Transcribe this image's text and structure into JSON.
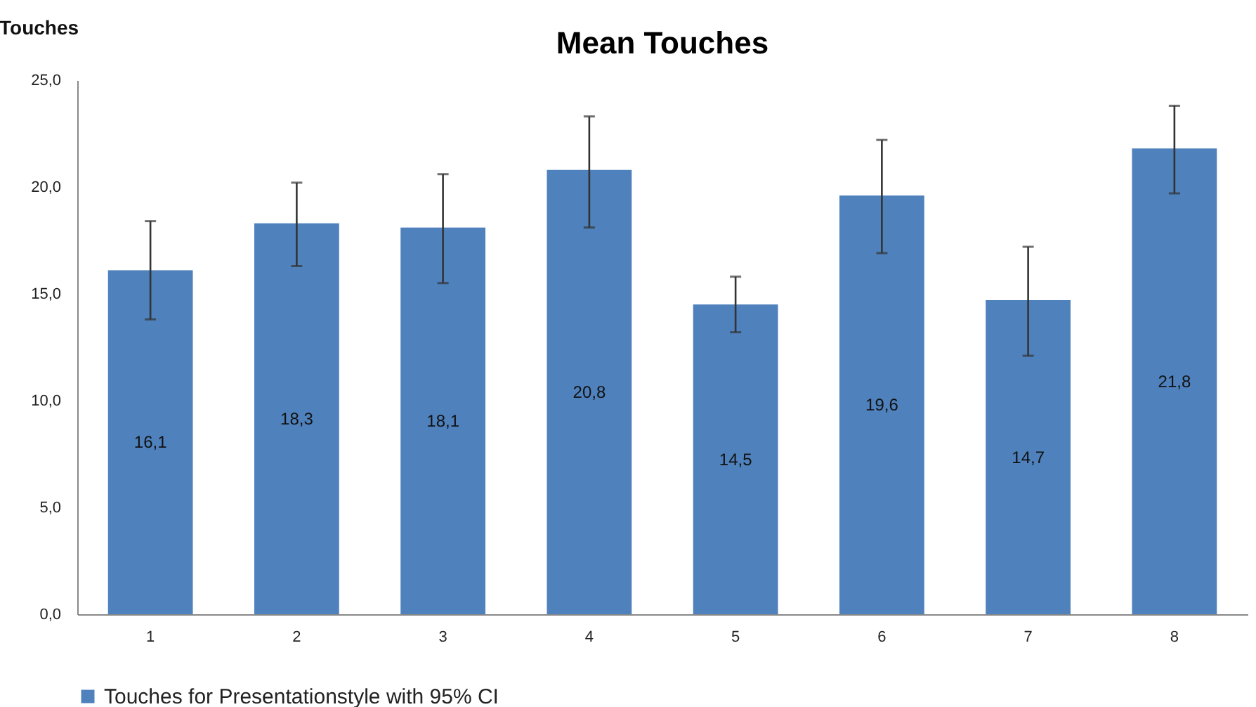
{
  "chart_data": {
    "type": "bar",
    "title": "Mean Touches",
    "ylabel": "Touches",
    "categories": [
      "1",
      "2",
      "3",
      "4",
      "5",
      "6",
      "7",
      "8"
    ],
    "series": [
      {
        "name": "Touches for Presentationstyle with 95% CI",
        "color": "#4f81bd",
        "values": [
          16.1,
          18.3,
          18.1,
          20.8,
          14.5,
          19.6,
          14.7,
          21.8
        ],
        "value_labels": [
          "16,1",
          "18,3",
          "18,1",
          "20,8",
          "14,5",
          "19,6",
          "14,7",
          "21,8"
        ],
        "errors": [
          [
            13.8,
            18.4
          ],
          [
            16.3,
            20.2
          ],
          [
            15.5,
            20.6
          ],
          [
            18.1,
            23.3
          ],
          [
            13.2,
            15.8
          ],
          [
            16.9,
            22.2
          ],
          [
            12.1,
            17.2
          ],
          [
            19.7,
            23.8
          ]
        ]
      }
    ],
    "ylim": [
      0,
      25
    ],
    "yticks": [
      {
        "value": 0,
        "label": "0,0"
      },
      {
        "value": 5,
        "label": "5,0"
      },
      {
        "value": 10,
        "label": "10,0"
      },
      {
        "value": 15,
        "label": "15,0"
      },
      {
        "value": 20,
        "label": "20,0"
      },
      {
        "value": 25,
        "label": "25,0"
      }
    ],
    "legend": "bottom"
  }
}
